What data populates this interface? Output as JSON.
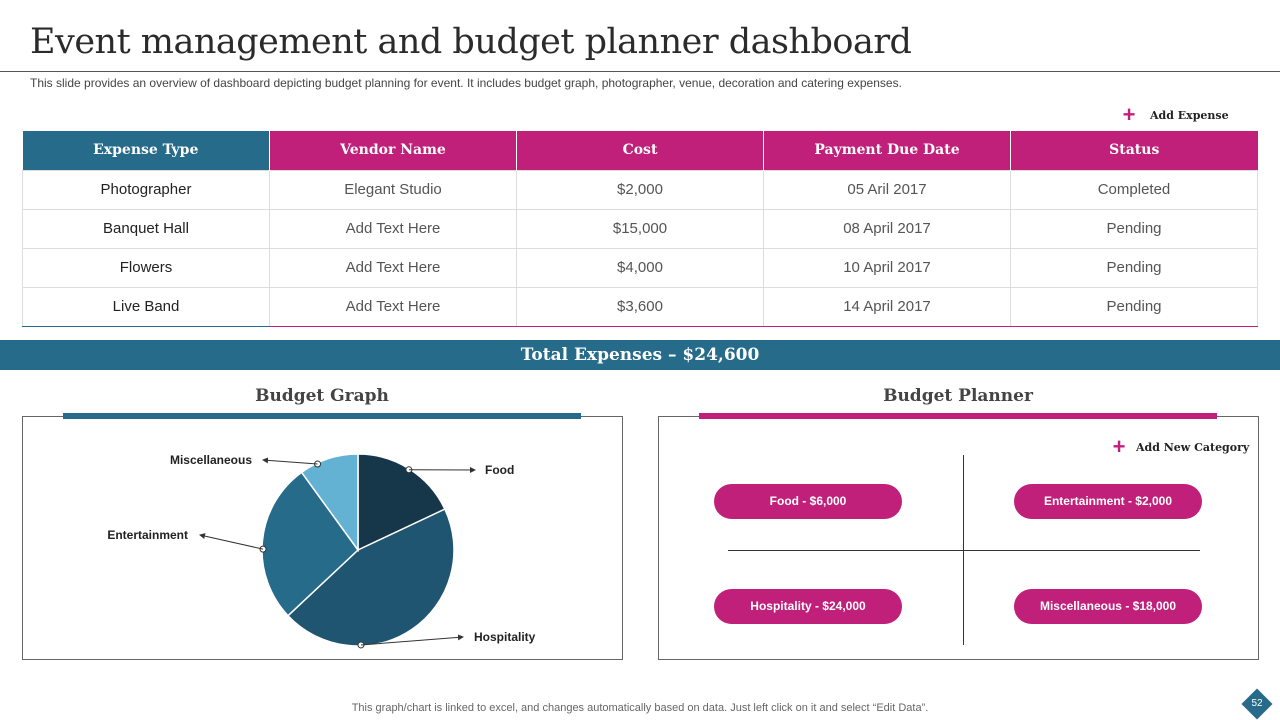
{
  "slide": {
    "title": "Event management and budget planner dashboard",
    "subtitle": "This slide provides an overview of dashboard depicting budget planning for event. It includes budget graph, photographer, venue, decoration and catering expenses.",
    "add_expense_label": "Add Expense",
    "plus_symbol": "+",
    "footer_note": "This graph/chart is linked to excel,  and changes automatically based on data. Just left click on it and select “Edit Data”.",
    "page_number": "52"
  },
  "table": {
    "headers": [
      "Expense Type",
      "Vendor Name",
      "Cost",
      "Payment Due Date",
      "Status"
    ],
    "rows": [
      [
        "Photographer",
        "Elegant Studio",
        "$2,000",
        "05 Aril 2017",
        "Completed"
      ],
      [
        "Banquet Hall",
        "Add Text Here",
        "$15,000",
        "08 April 2017",
        "Pending"
      ],
      [
        "Flowers",
        "Add Text Here",
        "$4,000",
        "10 April 2017",
        "Pending"
      ],
      [
        "Live Band",
        "Add Text Here",
        "$3,600",
        "14 April 2017",
        "Pending"
      ]
    ]
  },
  "total": {
    "label": "Total Expenses – $24,600"
  },
  "budget_graph": {
    "title": "Budget Graph"
  },
  "budget_planner": {
    "title": "Budget Planner",
    "add_category_label": "Add New Category",
    "categories": [
      "Food  - $6,000",
      "Entertainment - $2,000",
      "Hospitality  - $24,000",
      "Miscellaneous - $18,000"
    ]
  },
  "colors": {
    "teal": "#276b8b",
    "magenta": "#c0207a"
  },
  "chart_data": {
    "type": "pie",
    "title": "Budget Graph",
    "categories": [
      "Food",
      "Hospitality",
      "Entertainment",
      "Miscellaneous"
    ],
    "values": [
      18,
      45,
      27,
      10
    ],
    "unit": "percent (estimated from slice angles)",
    "colors": [
      "#16364a",
      "#1f5570",
      "#276b8b",
      "#63b2d3"
    ]
  }
}
